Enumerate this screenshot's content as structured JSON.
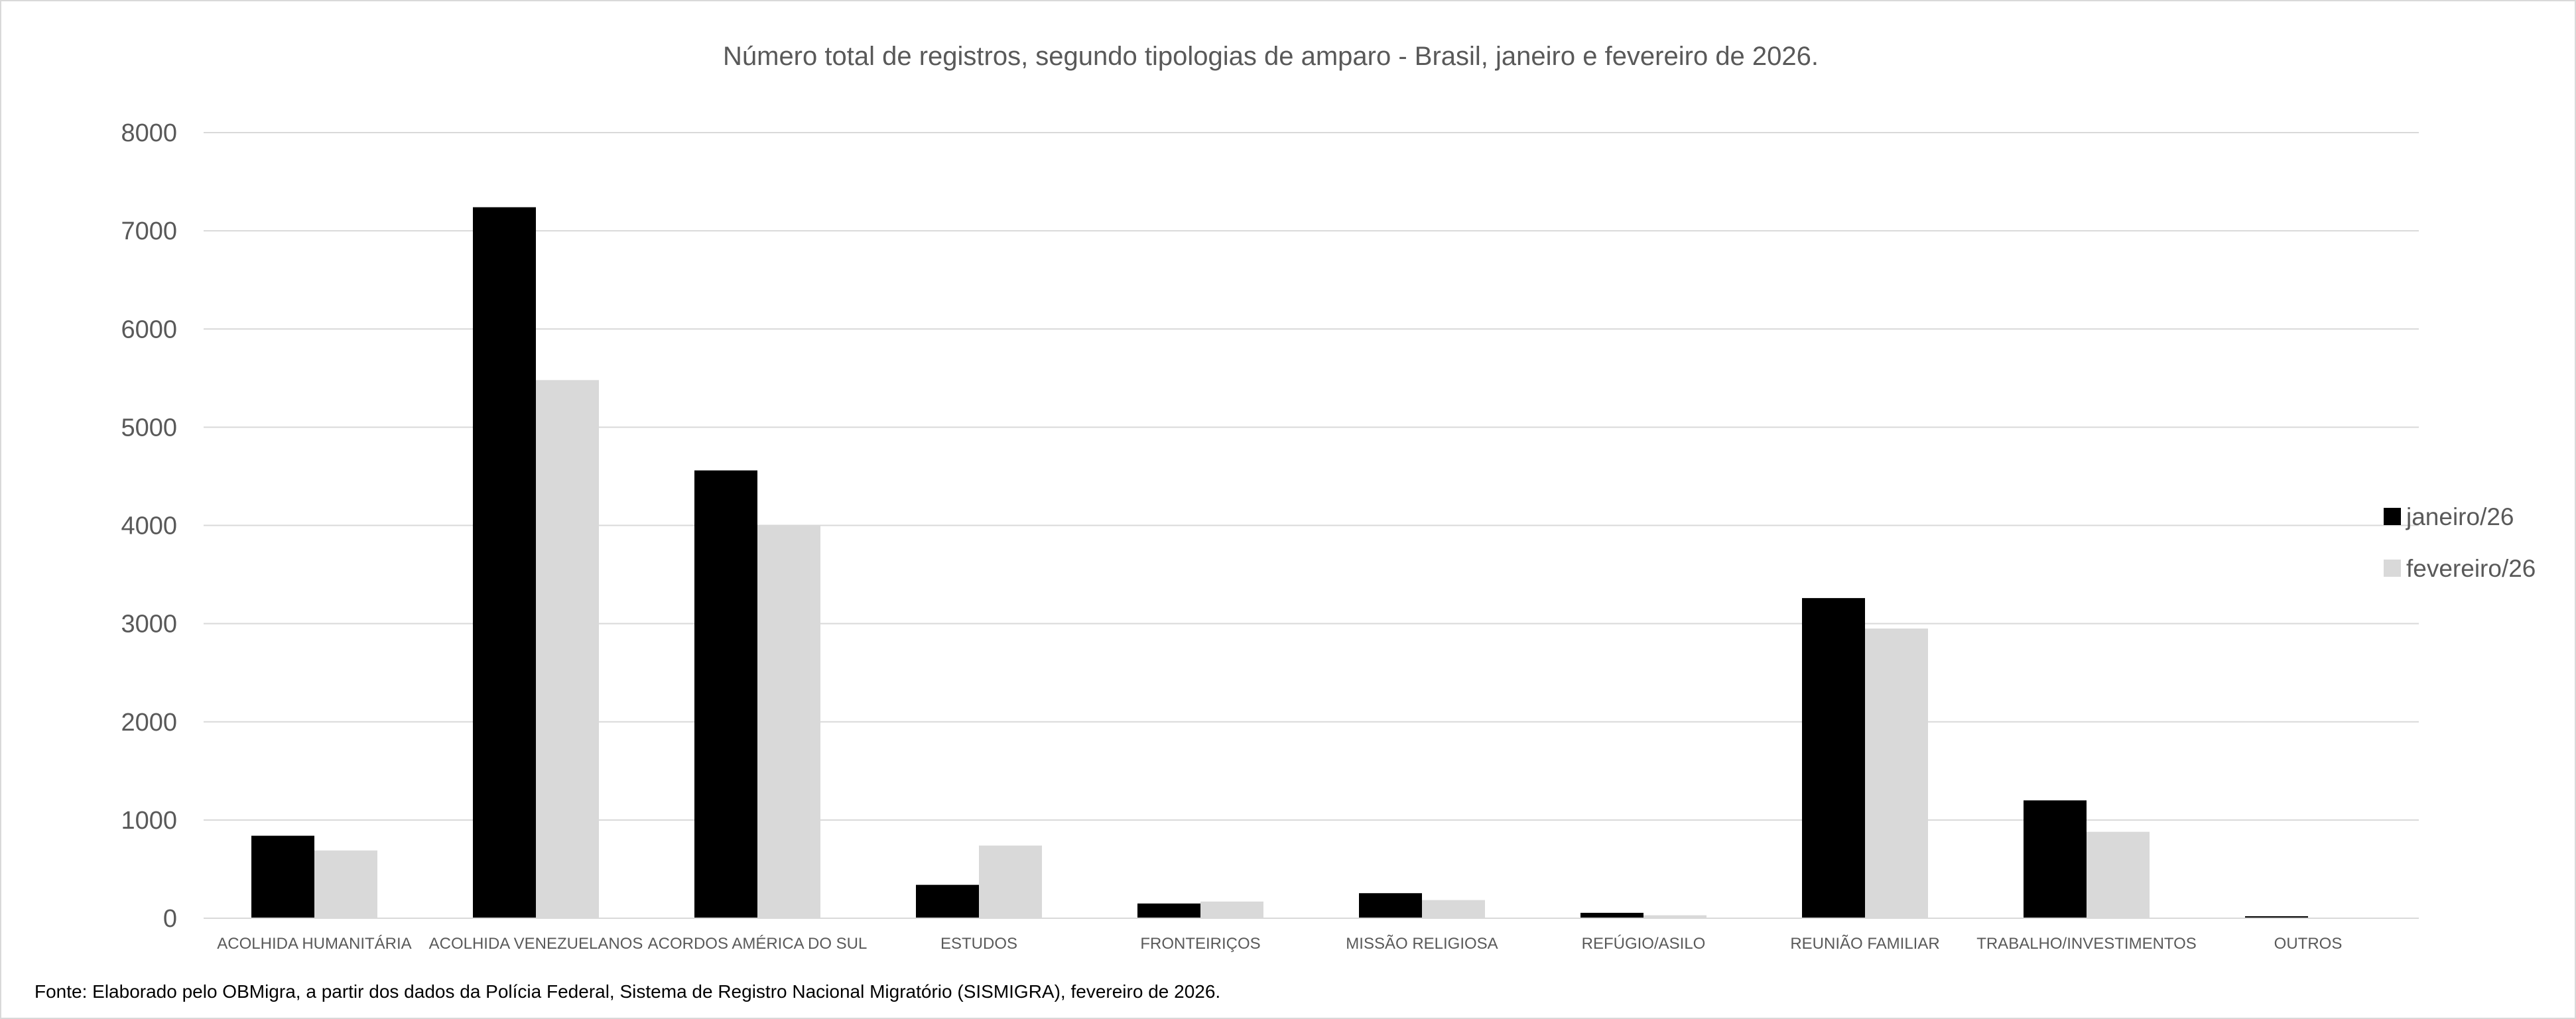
{
  "chart_data": {
    "type": "bar",
    "title": "Número total de registros, segundo tipologias de amparo - Brasil, janeiro e fevereiro de 2026.",
    "xlabel": "",
    "ylabel": "",
    "ylim": [
      0,
      8000
    ],
    "yticks": [
      0,
      1000,
      2000,
      3000,
      4000,
      5000,
      6000,
      7000,
      8000
    ],
    "grid": true,
    "legend_position": "right",
    "categories": [
      "ACOLHIDA HUMANITÁRIA",
      "ACOLHIDA VENEZUELANOS",
      "ACORDOS AMÉRICA DO SUL",
      "ESTUDOS",
      "FRONTEIRIÇOS",
      "MISSÃO RELIGIOSA",
      "REFÚGIO/ASILO",
      "REUNIÃO FAMILIAR",
      "TRABALHO/INVESTIMENTOS",
      "OUTROS"
    ],
    "series": [
      {
        "name": "janeiro/26",
        "color": "#000000",
        "values": [
          840,
          7240,
          4560,
          340,
          150,
          255,
          55,
          3260,
          1200,
          20
        ]
      },
      {
        "name": "fevereiro/26",
        "color": "#d9d9d9",
        "values": [
          690,
          5480,
          4000,
          740,
          170,
          185,
          30,
          2950,
          880,
          5
        ]
      }
    ]
  },
  "footer": {
    "source": "Fonte: Elaborado pelo OBMigra,  a partir dos dados da Polícia Federal, Sistema de Registro Nacional Migratório (SISMIGRA), fevereiro de 2026."
  },
  "colors": {
    "grid": "#d9d9d9",
    "text": "#595959"
  }
}
